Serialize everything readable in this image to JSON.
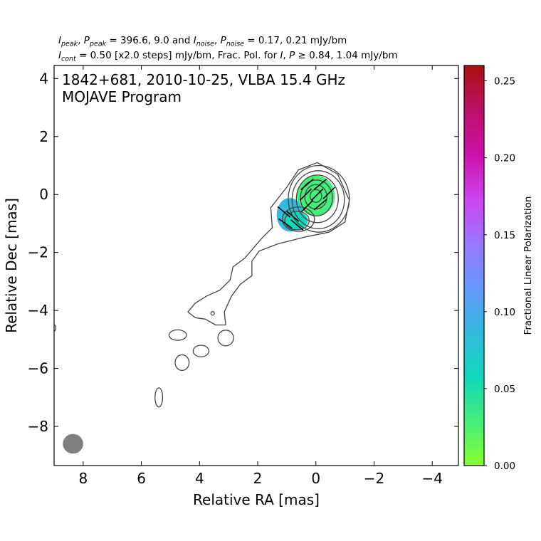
{
  "header": {
    "line1": {
      "i_peak": "I",
      "i_peak_sub": "peak",
      "p_peak": "P",
      "p_peak_sub": "peak",
      "eq1": " = 396.6, 9.0 and ",
      "i_noise": "I",
      "i_noise_sub": "noise",
      "p_noise": "P",
      "p_noise_sub": "noise",
      "eq2": " = 0.17, 0.21 mJy/bm"
    },
    "line2": {
      "i_cont": "I",
      "i_cont_sub": "cont",
      "eq1": " = 0.50 [x2.0 steps] mJy/bm, Frac. Pol. for ",
      "i": "I",
      "p": "P",
      "geq": " ≥ ",
      "eq2": " 0.84, 1.04 mJy/bm"
    }
  },
  "chart_data": {
    "type": "contour",
    "plot_title_lines": [
      "1842+681, 2010-10-25, VLBA 15.4 GHz",
      "MOJAVE Program"
    ],
    "xlabel": "Relative RA [mas]",
    "ylabel": "Relative Dec [mas]",
    "xlim": [
      9.0,
      -4.9
    ],
    "ylim": [
      -9.35,
      4.45
    ],
    "x_ticks": [
      8,
      6,
      4,
      2,
      0,
      -2,
      -4
    ],
    "x_tick_labels": [
      "8",
      "6",
      "4",
      "2",
      "0",
      "−2",
      "−4"
    ],
    "y_ticks": [
      4,
      2,
      0,
      -2,
      -4,
      -6,
      -8
    ],
    "y_tick_labels": [
      "4",
      "2",
      "0",
      "−2",
      "−4",
      "−6",
      "−8"
    ],
    "colorbar": {
      "label": "Fractional Linear Polarization",
      "range": [
        0.0,
        0.26
      ],
      "ticks": [
        0.0,
        0.05,
        0.1,
        0.15,
        0.2,
        0.25
      ],
      "tick_labels": [
        "0.00",
        "0.05",
        "0.10",
        "0.15",
        "0.20",
        "0.25"
      ],
      "colormap": [
        "#88ff33",
        "#44ee77",
        "#11d7bb",
        "#33bbdd",
        "#6699ff",
        "#9977ff",
        "#cc44ee",
        "#cc11aa",
        "#bb1166",
        "#aa1111"
      ]
    },
    "contour_color": "#444444",
    "contours_core": [
      {
        "cx": -0.1,
        "cy": -0.15,
        "rx": 1.05,
        "ry": 1.15
      },
      {
        "cx": -0.08,
        "cy": -0.18,
        "rx": 0.9,
        "ry": 1.0
      },
      {
        "cx": -0.05,
        "cy": -0.15,
        "rx": 0.72,
        "ry": 0.82
      },
      {
        "cx": -0.02,
        "cy": -0.12,
        "rx": 0.55,
        "ry": 0.62
      },
      {
        "cx": 0.0,
        "cy": -0.08,
        "rx": 0.38,
        "ry": 0.42
      },
      {
        "cx": 0.0,
        "cy": -0.05,
        "rx": 0.2,
        "ry": 0.22
      }
    ],
    "contours_ext": [
      {
        "cx": 0.6,
        "cy": -0.85,
        "rx": 0.55,
        "ry": 0.42
      },
      {
        "cx": 0.65,
        "cy": -0.9,
        "rx": 0.42,
        "ry": 0.32
      }
    ],
    "outer_contour": [
      [
        -0.05,
        1.1
      ],
      [
        -0.75,
        0.7
      ],
      [
        -1.15,
        -0.2
      ],
      [
        -1.0,
        -0.95
      ],
      [
        -0.45,
        -1.3
      ],
      [
        0.3,
        -1.45
      ],
      [
        1.3,
        -1.7
      ],
      [
        1.95,
        -1.95
      ],
      [
        2.2,
        -2.3
      ],
      [
        2.2,
        -2.8
      ],
      [
        2.6,
        -3.1
      ],
      [
        2.9,
        -3.5
      ],
      [
        3.15,
        -4.05
      ],
      [
        3.1,
        -4.5
      ],
      [
        3.45,
        -4.5
      ],
      [
        3.8,
        -4.3
      ],
      [
        4.15,
        -4.25
      ],
      [
        4.4,
        -4.05
      ],
      [
        4.15,
        -3.75
      ],
      [
        3.75,
        -3.5
      ],
      [
        3.3,
        -3.3
      ],
      [
        2.95,
        -2.95
      ],
      [
        2.85,
        -2.5
      ],
      [
        2.45,
        -2.2
      ],
      [
        2.15,
        -1.85
      ],
      [
        1.85,
        -1.5
      ],
      [
        1.5,
        -1.15
      ],
      [
        1.55,
        -0.45
      ],
      [
        1.0,
        0.25
      ],
      [
        0.6,
        0.85
      ]
    ],
    "islands": [
      {
        "cx": 3.55,
        "cy": -4.1,
        "rx": 0.06,
        "ry": 0.06
      },
      {
        "cx": 4.75,
        "cy": -4.85,
        "rx": 0.3,
        "ry": 0.18
      },
      {
        "cx": 3.95,
        "cy": -5.4,
        "rx": 0.27,
        "ry": 0.2
      },
      {
        "cx": 3.1,
        "cy": -4.95,
        "rx": 0.27,
        "ry": 0.27
      },
      {
        "cx": 4.6,
        "cy": -5.8,
        "rx": 0.24,
        "ry": 0.27
      },
      {
        "cx": 5.4,
        "cy": -7.0,
        "rx": 0.13,
        "ry": 0.33
      },
      {
        "cx": 9.02,
        "cy": -4.6,
        "rx": 0.08,
        "ry": 0.12
      }
    ],
    "polarization_regions": [
      {
        "cx": 0.0,
        "cy": -0.05,
        "rx": 0.65,
        "ry": 0.7,
        "frac_pol": 0.02
      },
      {
        "cx": 0.9,
        "cy": -0.7,
        "rx": 0.45,
        "ry": 0.58,
        "frac_pol": 0.085
      },
      {
        "cx": 0.7,
        "cy": -0.9,
        "rx": 0.42,
        "ry": 0.32,
        "frac_pol": 0.065
      }
    ],
    "evpa_vectors": [
      {
        "x": 0.3,
        "y": 0.35,
        "angle": 40
      },
      {
        "x": -0.15,
        "y": 0.35,
        "angle": 40
      },
      {
        "x": 0.35,
        "y": 0.0,
        "angle": 45
      },
      {
        "x": -0.05,
        "y": 0.0,
        "angle": 45
      },
      {
        "x": -0.45,
        "y": 0.05,
        "angle": 45
      },
      {
        "x": 0.3,
        "y": -0.4,
        "angle": 45
      },
      {
        "x": -0.15,
        "y": -0.35,
        "angle": 40
      },
      {
        "x": 1.1,
        "y": -0.6,
        "angle": -40
      },
      {
        "x": 0.8,
        "y": -0.75,
        "angle": -40
      },
      {
        "x": 1.05,
        "y": -1.0,
        "angle": -35
      },
      {
        "x": 0.65,
        "y": -1.05,
        "angle": -40
      }
    ],
    "beam": {
      "x": 8.35,
      "y": -8.6,
      "major_mas": 0.7,
      "minor_mas": 0.68,
      "color": "#808080"
    }
  }
}
